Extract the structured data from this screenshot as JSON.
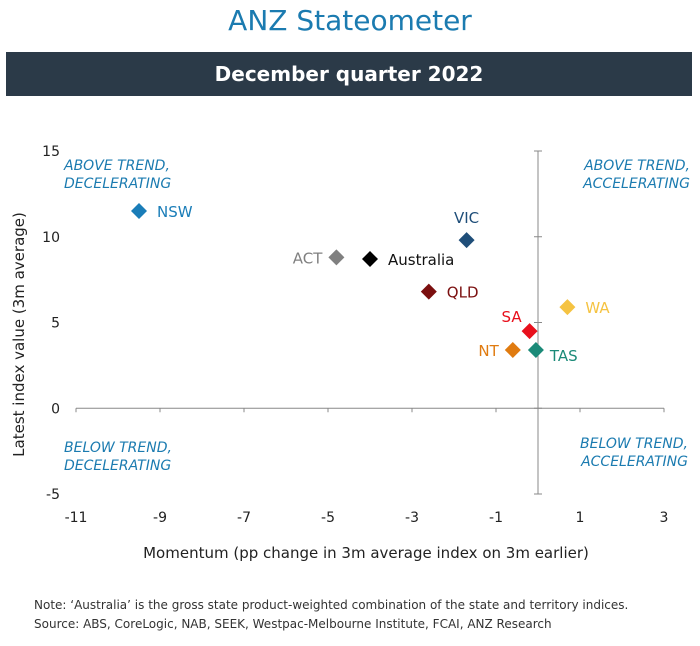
{
  "title": "ANZ Stateometer",
  "subtitle": "December quarter 2022",
  "colors": {
    "title": "#1b7bb0",
    "banner_bg": "#2b3a48",
    "quadrant_label": "#1b7bb0",
    "axis": "#888888"
  },
  "notes": [
    "Note: ‘Australia’ is the gross state product-weighted combination of the state and territory indices.",
    "Source: ABS, CoreLogic, NAB, SEEK, Westpac-Melbourne Institute, FCAI, ANZ Research"
  ],
  "chart_data": {
    "type": "scatter",
    "xlabel": "Momentum (pp change in 3m average index on 3m earlier)",
    "ylabel": "Latest index value (3m average)",
    "xlim": [
      -11,
      3
    ],
    "ylim": [
      -5,
      15
    ],
    "xticks": [
      -11,
      -9,
      -7,
      -5,
      -3,
      -1,
      1,
      3
    ],
    "yticks": [
      -5,
      0,
      5,
      10,
      15
    ],
    "x_axis_at_y": 0,
    "y_axis_at_x": 0,
    "grid": false,
    "quadrant_labels": [
      {
        "lines": [
          "ABOVE TREND,",
          "DECELERATING"
        ],
        "position": "top-left"
      },
      {
        "lines": [
          "ABOVE TREND,",
          "ACCELERATING"
        ],
        "position": "top-right"
      },
      {
        "lines": [
          "BELOW TREND,",
          "DECELERATING"
        ],
        "position": "bottom-left"
      },
      {
        "lines": [
          "BELOW TREND,",
          "ACCELERATING"
        ],
        "position": "bottom-right"
      }
    ],
    "points": [
      {
        "label": "NSW",
        "x": -9.5,
        "y": 11.5,
        "color": "#1a7db8",
        "label_side": "right"
      },
      {
        "label": "VIC",
        "x": -1.7,
        "y": 9.8,
        "color": "#1f4e79",
        "label_side": "above"
      },
      {
        "label": "ACT",
        "x": -4.8,
        "y": 8.8,
        "color": "#808080",
        "label_side": "left"
      },
      {
        "label": "Australia",
        "x": -4.0,
        "y": 8.7,
        "color": "#000000",
        "label_side": "right"
      },
      {
        "label": "QLD",
        "x": -2.6,
        "y": 6.8,
        "color": "#7b0f0f",
        "label_side": "right"
      },
      {
        "label": "WA",
        "x": 0.7,
        "y": 5.9,
        "color": "#f5c342",
        "label_side": "right"
      },
      {
        "label": "SA",
        "x": -0.2,
        "y": 4.5,
        "color": "#e8101c",
        "label_side": "above-left"
      },
      {
        "label": "NT",
        "x": -0.6,
        "y": 3.4,
        "color": "#e07b10",
        "label_side": "left"
      },
      {
        "label": "TAS",
        "x": -0.05,
        "y": 3.4,
        "color": "#1b8a78",
        "label_side": "below-right"
      }
    ]
  }
}
